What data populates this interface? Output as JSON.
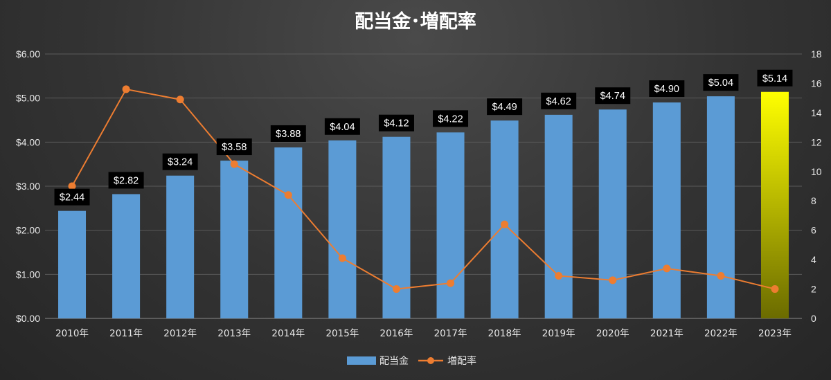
{
  "chart_data": {
    "type": "bar",
    "title": "配当金･増配率",
    "categories": [
      "2010年",
      "2011年",
      "2012年",
      "2013年",
      "2014年",
      "2015年",
      "2016年",
      "2017年",
      "2018年",
      "2019年",
      "2020年",
      "2021年",
      "2022年",
      "2023年"
    ],
    "series": [
      {
        "name": "配当金",
        "kind": "bar",
        "axis": "left",
        "values": [
          2.44,
          2.82,
          3.24,
          3.58,
          3.88,
          4.04,
          4.12,
          4.22,
          4.49,
          4.62,
          4.74,
          4.9,
          5.04,
          5.14
        ],
        "labels": [
          "$2.44",
          "$2.82",
          "$3.24",
          "$3.58",
          "$3.88",
          "$4.04",
          "$4.12",
          "$4.22",
          "$4.49",
          "$4.62",
          "$4.74",
          "$4.90",
          "$5.04",
          "$5.14"
        ]
      },
      {
        "name": "増配率",
        "kind": "line",
        "axis": "right",
        "values": [
          9.0,
          15.6,
          14.9,
          10.5,
          8.4,
          4.1,
          2.0,
          2.4,
          6.4,
          2.9,
          2.6,
          3.4,
          2.9,
          2.0
        ]
      }
    ],
    "y_left": {
      "ylim": [
        0,
        6
      ],
      "ticks": [
        "$0.00",
        "$1.00",
        "$2.00",
        "$3.00",
        "$4.00",
        "$5.00",
        "$6.00"
      ]
    },
    "y_right": {
      "ylim": [
        0,
        18
      ],
      "ticks": [
        "0",
        "2",
        "4",
        "6",
        "8",
        "10",
        "12",
        "14",
        "16",
        "18"
      ]
    },
    "grid": true,
    "legend_position": "bottom",
    "highlight_category": "2023年"
  },
  "colors": {
    "bar": "#5b9bd5",
    "line": "#ed7d31",
    "highlight_top": "#ffff00",
    "highlight_bottom": "#6b6b00",
    "grid": "#5a5a5a",
    "label_bg": "#000000"
  }
}
